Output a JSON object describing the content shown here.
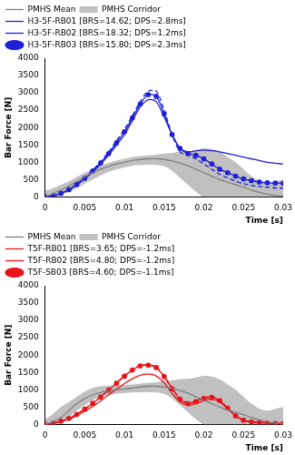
{
  "chart_data": [
    {
      "type": "line",
      "x_label": "Time [s]",
      "y_label": "Bar Force [N]",
      "xlim": [
        0,
        0.03
      ],
      "xticks": [
        0,
        0.005,
        0.01,
        0.015,
        0.02,
        0.025,
        0.03
      ],
      "ylim": [
        0,
        4000
      ],
      "yticks": [
        0,
        500,
        1000,
        1500,
        2000,
        2500,
        3000,
        3500,
        4000
      ],
      "grid": false,
      "legend": "upper left",
      "x": [
        0,
        0.001,
        0.002,
        0.003,
        0.004,
        0.005,
        0.006,
        0.007,
        0.008,
        0.009,
        0.01,
        0.011,
        0.012,
        0.013,
        0.014,
        0.015,
        0.016,
        0.017,
        0.018,
        0.019,
        0.02,
        0.021,
        0.022,
        0.023,
        0.024,
        0.025,
        0.026,
        0.027,
        0.028,
        0.029,
        0.03
      ],
      "corridor": {
        "name": "PMHS Corridor",
        "color": "#c0c0c0",
        "upper": [
          180,
          250,
          350,
          450,
          580,
          700,
          800,
          900,
          980,
          1050,
          1100,
          1150,
          1180,
          1200,
          1220,
          1250,
          1270,
          1300,
          1320,
          1350,
          1400,
          1380,
          1300,
          1150,
          1000,
          800,
          600,
          450,
          400,
          450,
          500
        ],
        "lower": [
          0,
          0,
          50,
          150,
          250,
          380,
          500,
          620,
          720,
          800,
          850,
          900,
          920,
          930,
          920,
          880,
          750,
          550,
          350,
          150,
          0,
          0,
          0,
          0,
          0,
          0,
          0,
          0,
          0,
          0,
          0
        ]
      },
      "series": [
        {
          "name": "PMHS Mean",
          "color": "#808080",
          "line_style": "solid",
          "marker": "none",
          "values": [
            0,
            100,
            200,
            320,
            450,
            580,
            700,
            800,
            880,
            950,
            1000,
            1050,
            1080,
            1100,
            1100,
            1080,
            1040,
            980,
            900,
            800,
            700,
            600,
            500,
            420,
            350,
            280,
            200,
            130,
            80,
            40,
            20
          ]
        },
        {
          "name": "H3-5F-RB01 [BRS=14.62; DPS=2.8ms]",
          "color": "#1f1fd6",
          "line_style": "solid",
          "marker": "none",
          "values": [
            0,
            30,
            100,
            200,
            350,
            520,
            720,
            950,
            1200,
            1500,
            1800,
            2200,
            2600,
            2800,
            2750,
            2300,
            1800,
            1400,
            1300,
            1330,
            1350,
            1330,
            1300,
            1250,
            1200,
            1150,
            1100,
            1050,
            1000,
            970,
            950
          ]
        },
        {
          "name": "H3-5F-RB02 [BRS=18.32; DPS=1.2ms]",
          "color": "#1f1fd6",
          "line_style": "dashed",
          "marker": "none",
          "values": [
            0,
            30,
            110,
            220,
            380,
            560,
            780,
            1020,
            1300,
            1620,
            1950,
            2350,
            2750,
            3050,
            3050,
            2500,
            1800,
            1300,
            1200,
            1100,
            950,
            800,
            650,
            550,
            450,
            380,
            330,
            300,
            280,
            260,
            250
          ]
        },
        {
          "name": "H3-5F-RB03 [BRS=15.80; DPS=2.3ms]",
          "color": "#1f1fd6",
          "line_style": "solid",
          "marker": "circle",
          "values": [
            0,
            30,
            105,
            210,
            360,
            540,
            750,
            980,
            1250,
            1560,
            1880,
            2280,
            2680,
            2950,
            2900,
            2400,
            1800,
            1400,
            1250,
            1200,
            1100,
            950,
            800,
            700,
            600,
            520,
            470,
            430,
            410,
            400,
            390
          ]
        }
      ]
    },
    {
      "type": "line",
      "x_label": "Time [s]",
      "y_label": "Bar Force [N]",
      "xlim": [
        0,
        0.03
      ],
      "xticks": [
        0,
        0.005,
        0.01,
        0.015,
        0.02,
        0.025,
        0.03
      ],
      "ylim": [
        0,
        4000
      ],
      "yticks": [
        0,
        500,
        1000,
        1500,
        2000,
        2500,
        3000,
        3500,
        4000
      ],
      "grid": false,
      "legend": "upper left",
      "x": [
        0,
        0.001,
        0.002,
        0.003,
        0.004,
        0.005,
        0.006,
        0.007,
        0.008,
        0.009,
        0.01,
        0.011,
        0.012,
        0.013,
        0.014,
        0.015,
        0.016,
        0.017,
        0.018,
        0.019,
        0.02,
        0.021,
        0.022,
        0.023,
        0.024,
        0.025,
        0.026,
        0.027,
        0.028,
        0.029,
        0.03
      ],
      "corridor": {
        "name": "PMHS Corridor",
        "color": "#c0c0c0",
        "upper": [
          150,
          300,
          500,
          650,
          800,
          950,
          1050,
          1100,
          1120,
          1130,
          1140,
          1150,
          1180,
          1200,
          1220,
          1250,
          1270,
          1300,
          1320,
          1350,
          1400,
          1380,
          1300,
          1150,
          1000,
          800,
          600,
          450,
          400,
          450,
          500
        ],
        "lower": [
          0,
          0,
          50,
          200,
          400,
          550,
          700,
          800,
          850,
          880,
          900,
          920,
          930,
          930,
          920,
          880,
          750,
          550,
          350,
          150,
          0,
          0,
          0,
          0,
          0,
          0,
          0,
          0,
          0,
          0,
          0
        ]
      },
      "series": [
        {
          "name": "PMHS Mean",
          "color": "#808080",
          "line_style": "solid",
          "marker": "none",
          "values": [
            0,
            80,
            200,
            400,
            600,
            750,
            850,
            920,
            970,
            1000,
            1020,
            1050,
            1080,
            1100,
            1100,
            1080,
            1040,
            980,
            900,
            800,
            700,
            600,
            500,
            420,
            350,
            280,
            200,
            130,
            80,
            40,
            20
          ]
        },
        {
          "name": "T5F-RB01 [BRS=3.65; DPS=-1.2ms]",
          "color": "#e8141a",
          "line_style": "solid",
          "marker": "none",
          "values": [
            0,
            30,
            80,
            150,
            250,
            380,
            520,
            680,
            850,
            1020,
            1180,
            1320,
            1420,
            1450,
            1400,
            1200,
            900,
            650,
            550,
            600,
            680,
            720,
            650,
            450,
            250,
            120,
            80,
            60,
            50,
            40,
            30
          ]
        },
        {
          "name": "T5F-RB02 [BRS=4.80; DPS=-1.2ms]",
          "color": "#e8141a",
          "line_style": "dashed",
          "marker": "none",
          "values": [
            0,
            40,
            100,
            180,
            300,
            450,
            620,
            800,
            1000,
            1200,
            1400,
            1580,
            1700,
            1720,
            1650,
            1400,
            1050,
            750,
            620,
            680,
            770,
            800,
            700,
            480,
            260,
            130,
            80,
            60,
            50,
            40,
            30
          ]
        },
        {
          "name": "T5F-SB03 [BRS=4.60; DPS=-1.1ms]",
          "color": "#e8141a",
          "line_style": "solid",
          "marker": "circle",
          "values": [
            0,
            35,
            95,
            175,
            290,
            440,
            610,
            790,
            990,
            1190,
            1390,
            1570,
            1690,
            1710,
            1640,
            1380,
            1030,
            730,
            600,
            660,
            750,
            780,
            690,
            470,
            250,
            120,
            70,
            50,
            40,
            30,
            20
          ]
        }
      ]
    }
  ]
}
